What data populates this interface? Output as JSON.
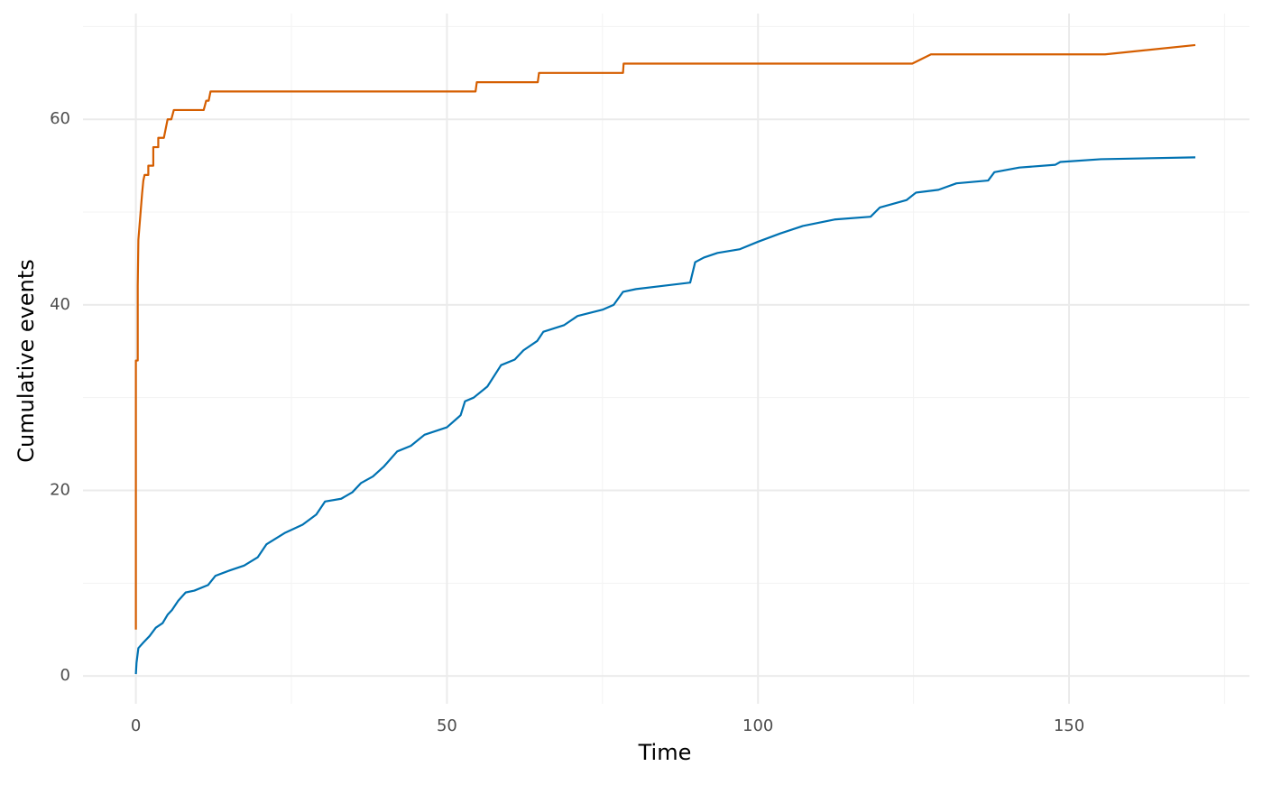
{
  "chart_data": {
    "type": "line",
    "xlabel": "Time",
    "ylabel": "Cumulative events",
    "xlim": [
      -8.5,
      179
    ],
    "ylim": [
      -3,
      71.4
    ],
    "xticks": [
      0,
      50,
      100,
      150
    ],
    "yticks": [
      0,
      20,
      40,
      60
    ],
    "minor_xticks": [
      25,
      75,
      125,
      175
    ],
    "minor_yticks": [
      10,
      30,
      50,
      70
    ],
    "grid": true,
    "series": [
      {
        "color": "#0072b2",
        "x": [
          0,
          0.1,
          0.4,
          1.2,
          2.2,
          3.2,
          4.3,
          5.1,
          5.8,
          6.8,
          8,
          9.4,
          11.6,
          12.8,
          15.2,
          17.4,
          19.6,
          21,
          23.9,
          26.8,
          29,
          30.4,
          33,
          34.8,
          36.2,
          38.1,
          39.9,
          42,
          44.2,
          46.4,
          50,
          52.2,
          52.9,
          54.3,
          56.5,
          58.7,
          60.9,
          62.3,
          64.5,
          65.5,
          68.8,
          71,
          75.1,
          76.8,
          78.3,
          80.4,
          84.1,
          89.1,
          89.9,
          91.3,
          93.5,
          97.1,
          100,
          103.6,
          107.2,
          112.3,
          118.1,
          119.6,
          123.9,
          125.4,
          129,
          131.9,
          137,
          138,
          142,
          147.8,
          148.6,
          155.1,
          170.3
        ],
        "values": [
          0.2,
          1.4,
          3,
          3.6,
          4.3,
          5.2,
          5.7,
          6.6,
          7.1,
          8.1,
          9,
          9.2,
          9.8,
          10.8,
          11.4,
          11.9,
          12.8,
          14.2,
          15.4,
          16.3,
          17.4,
          18.8,
          19.1,
          19.8,
          20.8,
          21.5,
          22.6,
          24.2,
          24.8,
          26,
          26.8,
          28.1,
          29.6,
          30,
          31.2,
          33.5,
          34.1,
          35.1,
          36.1,
          37.1,
          37.8,
          38.8,
          39.5,
          40,
          41.4,
          41.7,
          42,
          42.4,
          44.6,
          45.1,
          45.6,
          46,
          46.8,
          47.7,
          48.5,
          49.2,
          49.5,
          50.5,
          51.3,
          52.1,
          52.4,
          53.1,
          53.4,
          54.3,
          54.8,
          55.1,
          55.4,
          55.7,
          55.9
        ]
      },
      {
        "color": "#d55e00",
        "x": [
          0,
          0,
          0.3,
          0.3,
          0.4,
          0.7,
          1,
          1.2,
          1.4,
          2,
          2,
          2.8,
          2.8,
          3.6,
          3.6,
          4.5,
          4.8,
          5.1,
          5.7,
          6.1,
          10.9,
          11.3,
          11.7,
          12,
          54.6,
          54.8,
          64.6,
          64.8,
          78.3,
          78.4,
          124.8,
          127.8,
          155.8,
          170.3
        ],
        "values": [
          5,
          34,
          34,
          42,
          47,
          49.5,
          52,
          53.4,
          54,
          54,
          55,
          55,
          57,
          57,
          58,
          58,
          59,
          60,
          60,
          61,
          61,
          62,
          62,
          63,
          63,
          64,
          64,
          65,
          65,
          66,
          66,
          67,
          67,
          68
        ]
      }
    ]
  }
}
